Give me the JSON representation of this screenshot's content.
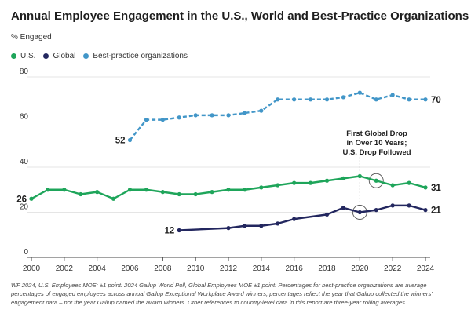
{
  "header": {
    "title": "Annual Employee Engagement in the U.S., World and Best-Practice Organizations",
    "subtitle": "% Engaged"
  },
  "colors": {
    "us": "#1ea55a",
    "global": "#23275f",
    "best": "#4296c8",
    "grid": "#dddddd",
    "axis": "#444444"
  },
  "chart_data": {
    "type": "line",
    "ylim": [
      0,
      80
    ],
    "yticks": [
      0,
      20,
      40,
      60,
      80
    ],
    "xlim": [
      2000,
      2024
    ],
    "xticks": [
      2000,
      2002,
      2004,
      2006,
      2008,
      2010,
      2012,
      2014,
      2016,
      2018,
      2020,
      2022,
      2024
    ],
    "grid": true,
    "legend_position": "top-left",
    "series": [
      {
        "name": "U.S.",
        "key": "us",
        "style": "solid",
        "x": [
          2000,
          2001,
          2002,
          2003,
          2004,
          2005,
          2006,
          2007,
          2008,
          2009,
          2010,
          2011,
          2012,
          2013,
          2014,
          2015,
          2016,
          2017,
          2018,
          2019,
          2020,
          2021,
          2022,
          2023,
          2024
        ],
        "y": [
          26,
          30,
          30,
          28,
          29,
          26,
          30,
          30,
          29,
          28,
          28,
          29,
          30,
          30,
          31,
          32,
          33,
          33,
          34,
          35,
          36,
          34,
          32,
          33,
          31
        ],
        "start_label": "26",
        "end_label": "31"
      },
      {
        "name": "Global",
        "key": "global",
        "style": "solid",
        "x": [
          2009,
          2012,
          2013,
          2014,
          2015,
          2016,
          2018,
          2019,
          2020,
          2021,
          2022,
          2023,
          2024
        ],
        "y": [
          12,
          13,
          14,
          14,
          15,
          17,
          19,
          22,
          20,
          21,
          23,
          23,
          21
        ],
        "start_label": "12",
        "end_label": "21"
      },
      {
        "name": "Best-practice organizations",
        "key": "best",
        "style": "dashed",
        "x": [
          2006,
          2007,
          2008,
          2009,
          2010,
          2011,
          2012,
          2013,
          2014,
          2015,
          2016,
          2017,
          2018,
          2019,
          2020,
          2021,
          2022,
          2023,
          2024
        ],
        "y": [
          52,
          61,
          61,
          62,
          63,
          63,
          63,
          64,
          65,
          70,
          70,
          70,
          70,
          71,
          73,
          70,
          72,
          70,
          70
        ],
        "start_label": "52",
        "end_label": "70"
      }
    ],
    "annotation": {
      "lines": [
        "First Global Drop",
        "in Over 10 Years;",
        "U.S. Drop Followed"
      ],
      "circled_points": [
        {
          "x": 2020,
          "y": 20
        },
        {
          "x": 2021,
          "y": 34
        }
      ]
    }
  },
  "footnote": "WF 2024, U.S. Employees MOE: ±1 point. 2024 Gallup World Poll, Global Employees MOE ±1 point. Percentages for best-practice organizations are average percentages of engaged employees across annual Gallup Exceptional Workplace Award winners; percentages reflect the year that Gallup collected the winners' engagement data – not the year Gallup named the award winners. Other references to country-level data in this report are three-year rolling averages."
}
